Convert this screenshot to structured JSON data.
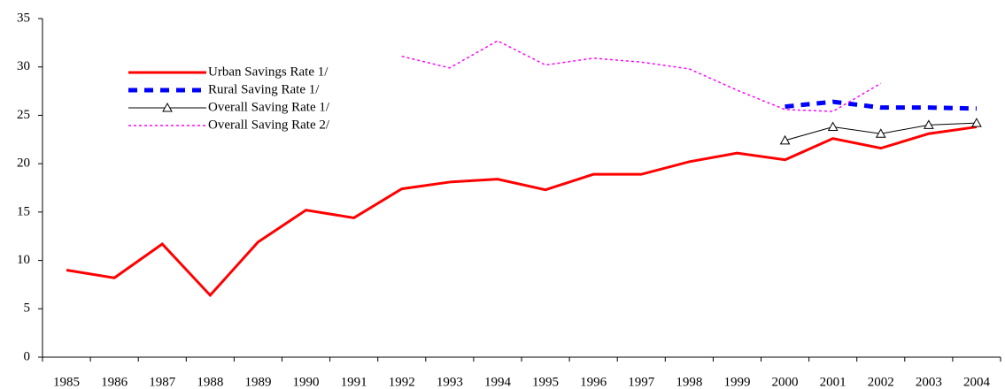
{
  "chart_data": {
    "type": "line",
    "categories": [
      "1985",
      "1986",
      "1987",
      "1988",
      "1989",
      "1990",
      "1991",
      "1992",
      "1993",
      "1994",
      "1995",
      "1996",
      "1997",
      "1998",
      "1999",
      "2000",
      "2001",
      "2002",
      "2003",
      "2004"
    ],
    "series": [
      {
        "name": "Urban Savings Rate 1/",
        "color": "#ff0000",
        "line_style": "solid",
        "marker": "none",
        "values": [
          9.0,
          8.2,
          11.7,
          6.4,
          11.9,
          15.2,
          14.4,
          17.4,
          18.1,
          18.4,
          17.3,
          18.9,
          18.9,
          20.2,
          21.1,
          20.4,
          22.6,
          21.6,
          23.1,
          23.8
        ]
      },
      {
        "name": "Rural Saving Rate 1/",
        "color": "#0000ff",
        "line_style": "dashed",
        "marker": "none",
        "values": [
          null,
          null,
          null,
          null,
          null,
          null,
          null,
          null,
          null,
          null,
          null,
          null,
          null,
          null,
          null,
          25.9,
          26.4,
          25.8,
          25.8,
          25.7
        ]
      },
      {
        "name": "Overall Saving Rate 1/",
        "color": "#000000",
        "line_style": "thin",
        "marker": "triangle",
        "values": [
          null,
          null,
          null,
          null,
          null,
          null,
          null,
          null,
          null,
          null,
          null,
          null,
          null,
          null,
          null,
          22.4,
          23.8,
          23.1,
          24.0,
          24.2
        ]
      },
      {
        "name": "Overall Saving Rate 2/",
        "color": "#ff00ff",
        "line_style": "dotted",
        "marker": "none",
        "values": [
          null,
          null,
          null,
          null,
          null,
          null,
          null,
          31.1,
          29.9,
          32.7,
          30.2,
          30.9,
          30.5,
          29.8,
          27.6,
          25.6,
          25.4,
          28.3,
          null,
          null
        ]
      }
    ],
    "ylim": [
      0,
      35
    ],
    "yticks": [
      0,
      5,
      10,
      15,
      20,
      25,
      30,
      35
    ],
    "grid": false,
    "legend": "upper left"
  }
}
